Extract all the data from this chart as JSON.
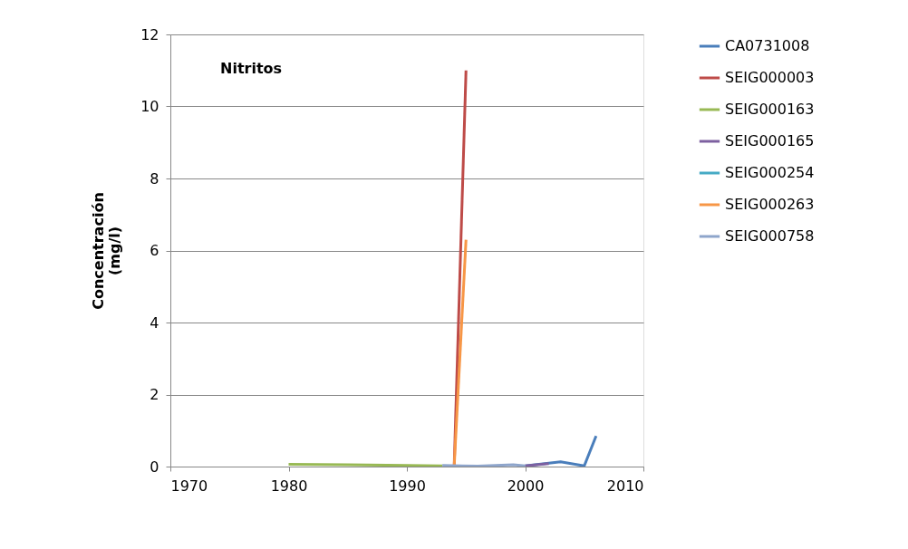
{
  "chart_data": {
    "type": "line",
    "title": "Nitritos",
    "ylabel": "Concentración (mg/l)",
    "xlim": [
      1970,
      2010
    ],
    "xticks": [
      1970,
      1980,
      1990,
      2000,
      2010
    ],
    "ylim": [
      0,
      12
    ],
    "yticks": [
      0,
      2,
      4,
      6,
      8,
      10,
      12
    ],
    "grid": "y",
    "legend": "right",
    "marker": "none",
    "line_style": "solid",
    "series": [
      {
        "name": "CA0731008",
        "color": "#4a7ebb",
        "x": [
          2000,
          2003,
          2005,
          2006
        ],
        "values": [
          0.02,
          0.13,
          0.02,
          0.85
        ]
      },
      {
        "name": "SEIG000003",
        "color": "#be4b48",
        "x": [
          1994,
          1995
        ],
        "values": [
          0.0,
          11.0
        ]
      },
      {
        "name": "SEIG000163",
        "color": "#98b954",
        "x": [
          1980,
          1985,
          1990,
          1993
        ],
        "values": [
          0.06,
          0.05,
          0.03,
          0.02
        ]
      },
      {
        "name": "SEIG000165",
        "color": "#7d60a0",
        "x": [
          2000,
          2002
        ],
        "values": [
          0.02,
          0.08
        ]
      },
      {
        "name": "SEIG000254",
        "color": "#46aac5"
      },
      {
        "name": "SEIG000263",
        "color": "#f79646",
        "x": [
          1994,
          1995
        ],
        "values": [
          0.0,
          6.3
        ]
      },
      {
        "name": "SEIG000758",
        "color": "#8ea5cb",
        "x": [
          1993,
          1996,
          1999,
          2000
        ],
        "values": [
          0.03,
          0.01,
          0.05,
          0.02
        ]
      }
    ]
  }
}
